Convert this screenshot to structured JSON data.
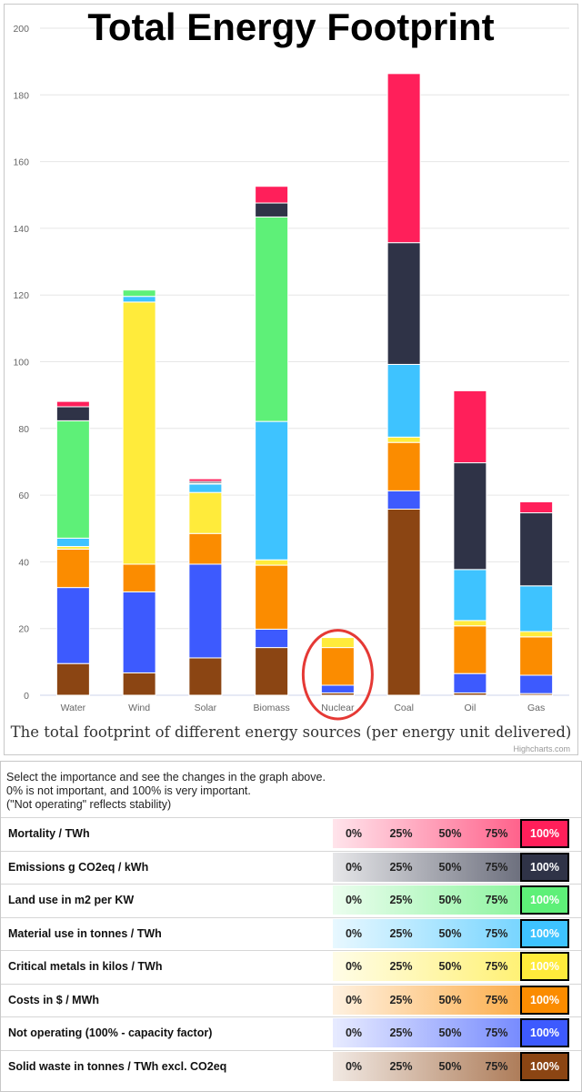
{
  "title": "Total Energy Footprint",
  "chart_data": {
    "type": "bar",
    "stacked": true,
    "subtitle": "The total footprint of different energy sources (per energy unit delivered)",
    "credits": "Highcharts.com",
    "categories": [
      "Water",
      "Wind",
      "Solar",
      "Biomass",
      "Nuclear",
      "Coal",
      "Oil",
      "Gas"
    ],
    "ylim": [
      0,
      200
    ],
    "yticks": [
      0,
      20,
      40,
      60,
      80,
      100,
      120,
      140,
      160,
      180,
      200
    ],
    "grid": true,
    "legend": "none",
    "highlight_category": "Nuclear",
    "series": [
      {
        "key": "solid_waste",
        "color": "#8b4513",
        "values": [
          9.5,
          6.7,
          11.2,
          14.3,
          0.7,
          55.8,
          0.7,
          0.5
        ]
      },
      {
        "key": "not_operating",
        "color": "#3d5afe",
        "values": [
          22.8,
          24.3,
          28.1,
          5.5,
          2.3,
          5.5,
          5.8,
          5.5
        ]
      },
      {
        "key": "costs",
        "color": "#fb8c00",
        "values": [
          11.5,
          8.3,
          9.2,
          19.2,
          11.3,
          14.5,
          14.3,
          11.5
        ]
      },
      {
        "key": "critical_metals",
        "color": "#ffeb3b",
        "values": [
          0.8,
          78.6,
          12.3,
          1.6,
          3.0,
          1.6,
          1.6,
          1.6
        ]
      },
      {
        "key": "material_use",
        "color": "#3ec3ff",
        "values": [
          2.5,
          1.7,
          2.5,
          41.5,
          0,
          21.8,
          15.3,
          13.7
        ]
      },
      {
        "key": "land_use",
        "color": "#5ef078",
        "values": [
          35.2,
          1.9,
          0.3,
          61.3,
          0,
          0,
          0,
          0
        ]
      },
      {
        "key": "emissions",
        "color": "#2f3347",
        "values": [
          4.2,
          0,
          0.5,
          4.2,
          0,
          36.5,
          32.0,
          21.9
        ]
      },
      {
        "key": "mortality",
        "color": "#ff1f5a",
        "values": [
          1.6,
          0,
          0.8,
          5.0,
          0,
          50.7,
          21.6,
          3.3
        ]
      }
    ]
  },
  "controls": {
    "intro": [
      "Select the importance and see the changes in the graph above.",
      "0% is not important, and 100% is very important.",
      "(\"Not operating\" reflects stability)"
    ],
    "options": [
      "0%",
      "25%",
      "50%",
      "75%",
      "100%"
    ],
    "rows": [
      {
        "label": "Mortality / TWh",
        "color": "#ff1f5a",
        "selected": "100%"
      },
      {
        "label": "Emissions g CO2eq / kWh",
        "color": "#2f3347",
        "selected": "100%"
      },
      {
        "label": "Land use in m2 per KW",
        "color": "#5ef078",
        "selected": "100%"
      },
      {
        "label": "Material use in tonnes / TWh",
        "color": "#3ec3ff",
        "selected": "100%"
      },
      {
        "label": "Critical metals in kilos / TWh",
        "color": "#ffeb3b",
        "selected": "100%"
      },
      {
        "label": "Costs in $ / MWh",
        "color": "#fb8c00",
        "selected": "100%"
      },
      {
        "label": "Not operating (100% - capacity factor)",
        "color": "#3d5afe",
        "selected": "100%"
      },
      {
        "label": "Solid waste in tonnes / TWh excl. CO2eq",
        "color": "#8b4513",
        "selected": "100%"
      }
    ]
  }
}
